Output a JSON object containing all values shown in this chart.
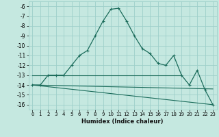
{
  "title": "",
  "xlabel": "Humidex (Indice chaleur)",
  "bg_color": "#c5e8e0",
  "grid_color": "#9ecfca",
  "line_color": "#1a6b5a",
  "xlim": [
    -0.5,
    23.5
  ],
  "ylim": [
    -16.5,
    -5.5
  ],
  "yticks": [
    -6,
    -7,
    -8,
    -9,
    -10,
    -11,
    -12,
    -13,
    -14,
    -15,
    -16
  ],
  "xticks": [
    0,
    1,
    2,
    3,
    4,
    5,
    6,
    7,
    8,
    9,
    10,
    11,
    12,
    13,
    14,
    15,
    16,
    17,
    18,
    19,
    20,
    21,
    22,
    23
  ],
  "main_x": [
    0,
    1,
    2,
    3,
    4,
    5,
    6,
    7,
    8,
    9,
    10,
    11,
    12,
    13,
    14,
    15,
    16,
    17,
    18,
    19,
    20,
    21,
    22,
    23
  ],
  "main_y": [
    -14.0,
    -14.0,
    -13.0,
    -13.0,
    -13.0,
    -12.0,
    -11.0,
    -10.5,
    -9.0,
    -7.5,
    -6.3,
    -6.2,
    -7.5,
    -9.0,
    -10.3,
    -10.8,
    -11.8,
    -12.0,
    -11.0,
    -13.0,
    -14.0,
    -12.5,
    -14.5,
    -16.0
  ],
  "flat_line_x": [
    0,
    19
  ],
  "flat_line_y": [
    -13.0,
    -13.0
  ],
  "diag_line1_x": [
    0,
    23
  ],
  "diag_line1_y": [
    -14.0,
    -14.4
  ],
  "diag_line2_x": [
    0,
    23
  ],
  "diag_line2_y": [
    -14.0,
    -16.0
  ]
}
